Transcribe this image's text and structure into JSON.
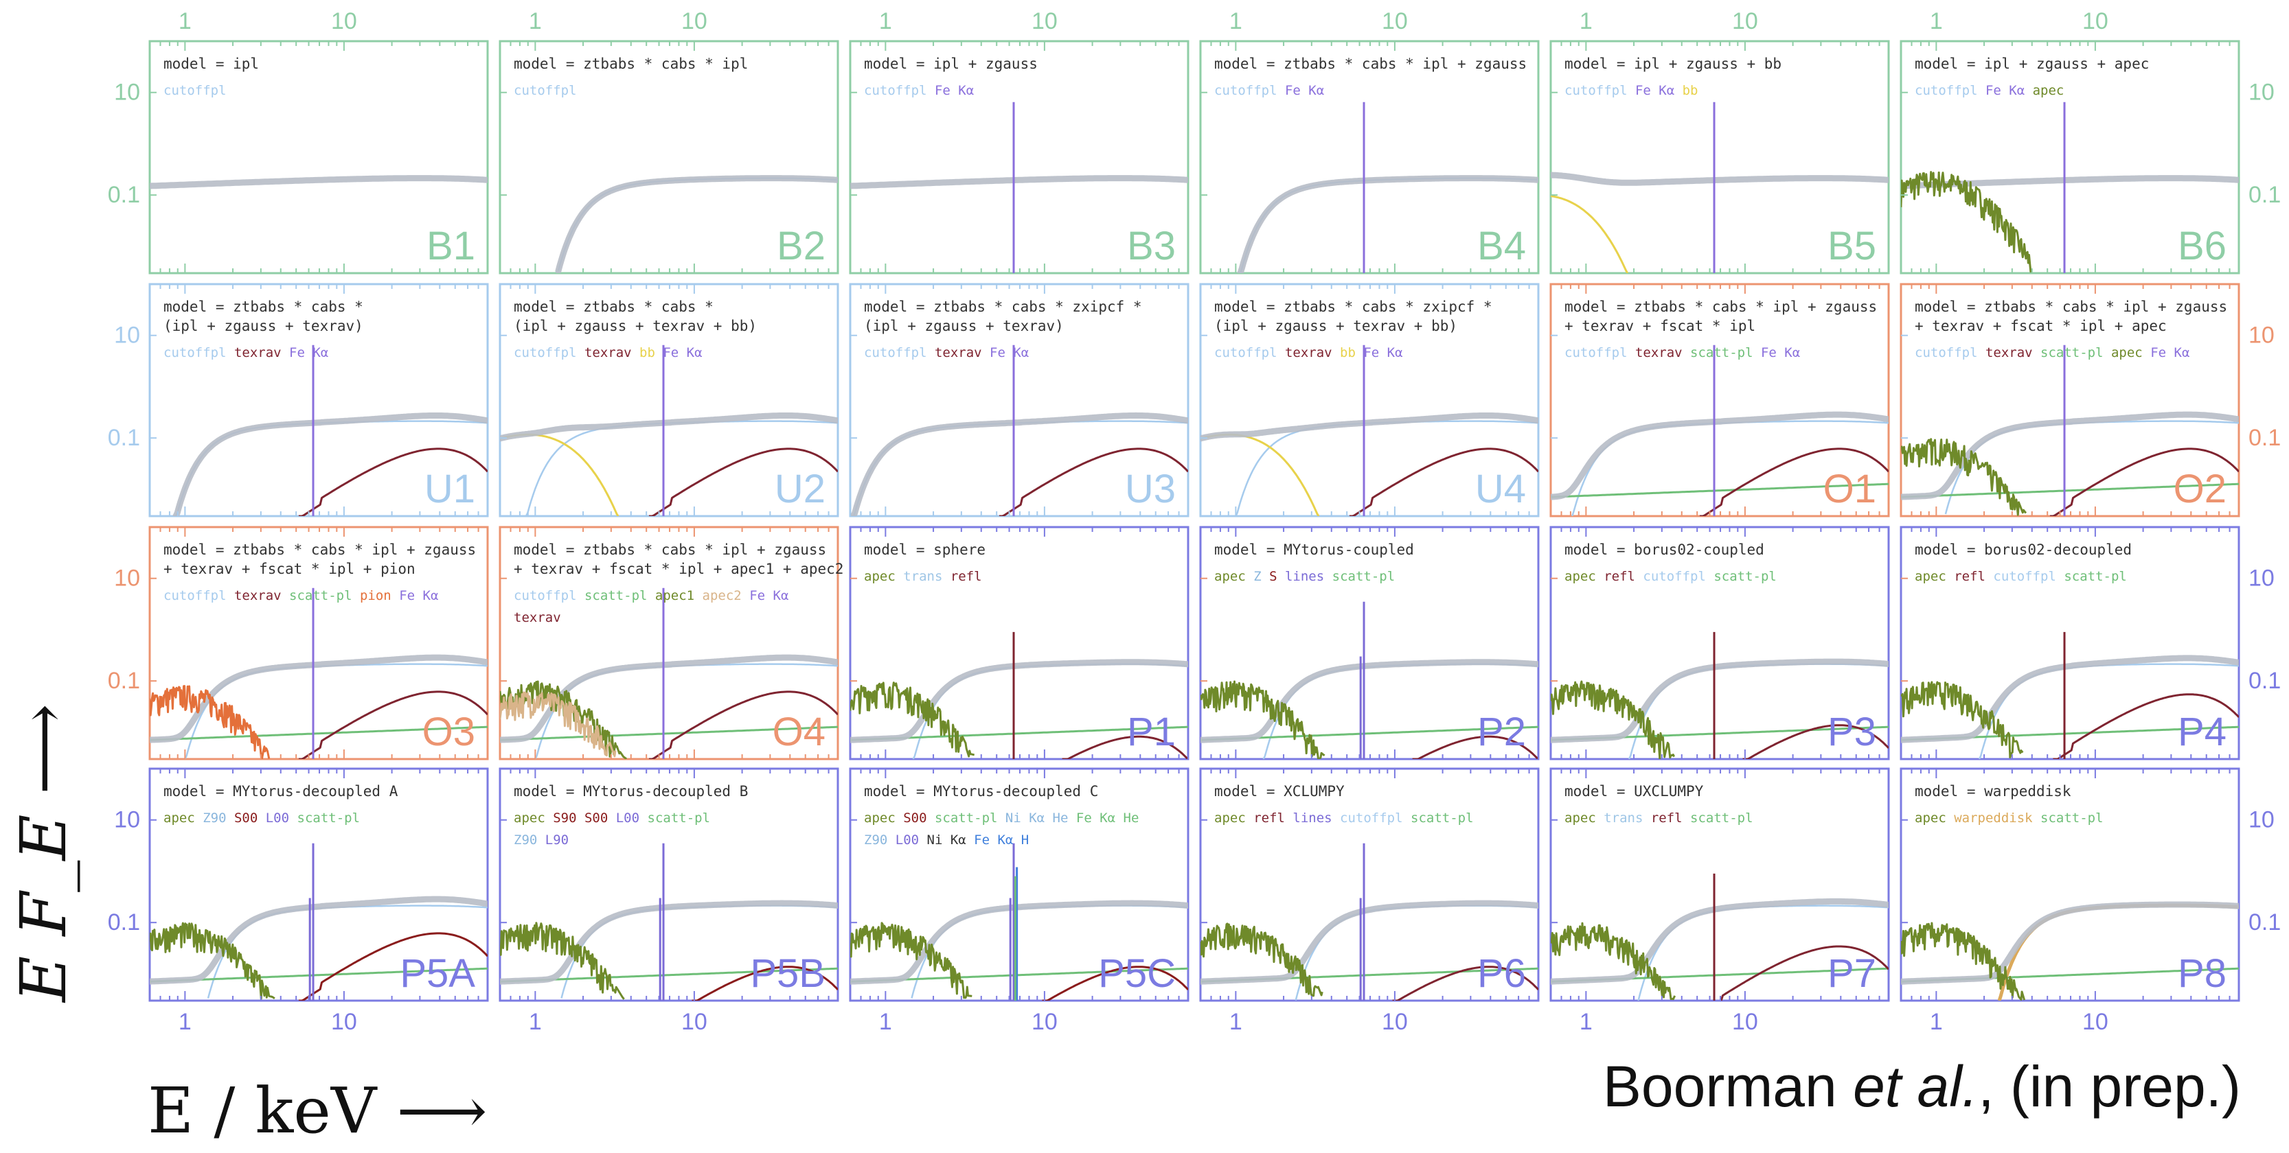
{
  "axes": {
    "xlabel": "E / keV ⟶",
    "ylabel": "E F_E ⟶",
    "x_scale": "log",
    "y_scale": "log",
    "xlim": [
      0.6,
      80
    ],
    "ylim": [
      0.003,
      100
    ],
    "x_ticks": [
      {
        "value": 1,
        "label": "1"
      },
      {
        "value": 10,
        "label": "10"
      }
    ],
    "y_ticks": [
      {
        "value": 10,
        "label": "10"
      },
      {
        "value": 0.1,
        "label": "0.1"
      }
    ]
  },
  "credit": {
    "author": "Boorman",
    "etal": "et al.",
    "rest": ", (in prep.)"
  },
  "colors": {
    "B": "#8fcea6",
    "U": "#a6cbed",
    "O": "#ec9470",
    "P": "#7b7be2",
    "total": "#b7bcc6",
    "cutoffpl": "#a6cbed",
    "texrav": "#7f2430",
    "fekalpha": "#8a6fdc",
    "bb": "#e8d24b",
    "apec": "#6f8a2a",
    "scattpl": "#6fbf78",
    "pion": "#e4703a",
    "apec2": "#d9b48a",
    "trans": "#9fc6e6",
    "refl": "#7f2430",
    "z": "#8ab6dd",
    "s": "#8a1c1c",
    "lines": "#7b6bd6",
    "nika": "#333333",
    "fekah": "#3f7fdc",
    "warpeddisk": "#dba95a"
  },
  "chart_data": {
    "type": "line",
    "title": "",
    "xlabel": "E / keV",
    "ylabel": "E F_E",
    "xlim": [
      0.6,
      80
    ],
    "ylim": [
      0.003,
      100
    ],
    "grid": false,
    "panels": [
      {
        "id": "B1",
        "group": "B",
        "model": [
          "model = ipl"
        ],
        "legend": [
          [
            "cutoffpl",
            "cutoffpl"
          ]
        ]
      },
      {
        "id": "B2",
        "group": "B",
        "model": [
          "model = ztbabs * cabs * ipl"
        ],
        "legend": [
          [
            "cutoffpl",
            "cutoffpl"
          ]
        ]
      },
      {
        "id": "B3",
        "group": "B",
        "model": [
          "model = ipl + zgauss"
        ],
        "legend": [
          [
            "cutoffpl",
            "cutoffpl"
          ],
          [
            "fekalpha",
            "Fe Kα"
          ]
        ]
      },
      {
        "id": "B4",
        "group": "B",
        "model": [
          "model = ztbabs * cabs * ipl + zgauss"
        ],
        "legend": [
          [
            "cutoffpl",
            "cutoffpl"
          ],
          [
            "fekalpha",
            "Fe Kα"
          ]
        ]
      },
      {
        "id": "B5",
        "group": "B",
        "model": [
          "model = ipl + zgauss + bb"
        ],
        "legend": [
          [
            "cutoffpl",
            "cutoffpl"
          ],
          [
            "fekalpha",
            "Fe Kα"
          ],
          [
            "bb",
            "bb"
          ]
        ]
      },
      {
        "id": "B6",
        "group": "B",
        "model": [
          "model = ipl + zgauss + apec"
        ],
        "legend": [
          [
            "cutoffpl",
            "cutoffpl"
          ],
          [
            "fekalpha",
            "Fe Kα"
          ],
          [
            "apec",
            "apec"
          ]
        ]
      },
      {
        "id": "U1",
        "group": "U",
        "model": [
          "model = ztbabs * cabs *",
          "(ipl + zgauss + texrav)"
        ],
        "legend": [
          [
            "cutoffpl",
            "cutoffpl"
          ],
          [
            "texrav",
            "texrav"
          ],
          [
            "fekalpha",
            "Fe Kα"
          ]
        ]
      },
      {
        "id": "U2",
        "group": "U",
        "model": [
          "model = ztbabs * cabs *",
          "(ipl + zgauss + texrav + bb)"
        ],
        "legend": [
          [
            "cutoffpl",
            "cutoffpl"
          ],
          [
            "texrav",
            "texrav"
          ],
          [
            "bb",
            "bb"
          ],
          [
            "fekalpha",
            "Fe Kα"
          ]
        ]
      },
      {
        "id": "U3",
        "group": "U",
        "model": [
          "model = ztbabs * cabs * zxipcf *",
          "(ipl + zgauss + texrav)"
        ],
        "legend": [
          [
            "cutoffpl",
            "cutoffpl"
          ],
          [
            "texrav",
            "texrav"
          ],
          [
            "fekalpha",
            "Fe Kα"
          ]
        ]
      },
      {
        "id": "U4",
        "group": "U",
        "model": [
          "model = ztbabs * cabs * zxipcf *",
          "(ipl + zgauss + texrav + bb)"
        ],
        "legend": [
          [
            "cutoffpl",
            "cutoffpl"
          ],
          [
            "texrav",
            "texrav"
          ],
          [
            "bb",
            "bb"
          ],
          [
            "fekalpha",
            "Fe Kα"
          ]
        ]
      },
      {
        "id": "O1",
        "group": "O",
        "model": [
          "model = ztbabs * cabs * ipl + zgauss",
          "+ texrav + fscat * ipl"
        ],
        "legend": [
          [
            "cutoffpl",
            "cutoffpl"
          ],
          [
            "texrav",
            "texrav"
          ],
          [
            "scattpl",
            "scatt-pl"
          ],
          [
            "fekalpha",
            "Fe Kα"
          ]
        ]
      },
      {
        "id": "O2",
        "group": "O",
        "model": [
          "model = ztbabs * cabs * ipl + zgauss",
          "+ texrav + fscat * ipl + apec"
        ],
        "legend": [
          [
            "cutoffpl",
            "cutoffpl"
          ],
          [
            "texrav",
            "texrav"
          ],
          [
            "scattpl",
            "scatt-pl"
          ],
          [
            "apec",
            "apec"
          ],
          [
            "fekalpha",
            "Fe Kα"
          ]
        ]
      },
      {
        "id": "O3",
        "group": "O",
        "model": [
          "model = ztbabs * cabs * ipl + zgauss",
          "+ texrav + fscat * ipl + pion"
        ],
        "legend": [
          [
            "cutoffpl",
            "cutoffpl"
          ],
          [
            "texrav",
            "texrav"
          ],
          [
            "scattpl",
            "scatt-pl"
          ],
          [
            "pion",
            "pion"
          ],
          [
            "fekalpha",
            "Fe Kα"
          ]
        ]
      },
      {
        "id": "O4",
        "group": "O",
        "model": [
          "model = ztbabs * cabs * ipl + zgauss",
          "+ texrav + fscat * ipl + apec1 + apec2"
        ],
        "legend": [
          [
            "cutoffpl",
            "cutoffpl"
          ],
          [
            "scattpl",
            "scatt-pl"
          ],
          [
            "apec",
            "apec1"
          ],
          [
            "apec2",
            "apec2"
          ],
          [
            "fekalpha",
            "Fe Kα"
          ]
        ],
        "legend2": [
          [
            "texrav",
            "texrav"
          ]
        ]
      },
      {
        "id": "P1",
        "group": "P",
        "model": [
          "model = sphere"
        ],
        "legend": [
          [
            "apec",
            "apec"
          ],
          [
            "trans",
            "trans"
          ],
          [
            "refl",
            "refl"
          ]
        ]
      },
      {
        "id": "P2",
        "group": "P",
        "model": [
          "model = MYtorus-coupled"
        ],
        "legend": [
          [
            "apec",
            "apec"
          ],
          [
            "z",
            "Z"
          ],
          [
            "s",
            "S"
          ],
          [
            "lines",
            "lines"
          ],
          [
            "scattpl",
            "scatt-pl"
          ]
        ]
      },
      {
        "id": "P3",
        "group": "P",
        "model": [
          "model = borus02-coupled"
        ],
        "legend": [
          [
            "apec",
            "apec"
          ],
          [
            "refl",
            "refl"
          ],
          [
            "cutoffpl",
            "cutoffpl"
          ],
          [
            "scattpl",
            "scatt-pl"
          ]
        ]
      },
      {
        "id": "P4",
        "group": "P",
        "model": [
          "model = borus02-decoupled"
        ],
        "legend": [
          [
            "apec",
            "apec"
          ],
          [
            "refl",
            "refl"
          ],
          [
            "cutoffpl",
            "cutoffpl"
          ],
          [
            "scattpl",
            "scatt-pl"
          ]
        ]
      },
      {
        "id": "P5A",
        "group": "P",
        "model": [
          "model = MYtorus-decoupled A"
        ],
        "legend": [
          [
            "apec",
            "apec"
          ],
          [
            "z",
            "Z90"
          ],
          [
            "s",
            "S00"
          ],
          [
            "lines",
            "L00"
          ],
          [
            "scattpl",
            "scatt-pl"
          ]
        ]
      },
      {
        "id": "P5B",
        "group": "P",
        "model": [
          "model = MYtorus-decoupled B"
        ],
        "legend": [
          [
            "apec",
            "apec"
          ],
          [
            "s",
            "S90"
          ],
          [
            "s",
            "S00"
          ],
          [
            "lines",
            "L00"
          ],
          [
            "scattpl",
            "scatt-pl"
          ]
        ],
        "legend2": [
          [
            "z",
            "Z90"
          ],
          [
            "lines",
            "L90"
          ]
        ]
      },
      {
        "id": "P5C",
        "group": "P",
        "model": [
          "model = MYtorus-decoupled C"
        ],
        "legend": [
          [
            "apec",
            "apec"
          ],
          [
            "s",
            "S00"
          ],
          [
            "scattpl",
            "scatt-pl"
          ],
          [
            "z",
            "Ni Kα He"
          ],
          [
            "scattpl",
            "Fe Kα He"
          ]
        ],
        "legend2": [
          [
            "z",
            "Z90"
          ],
          [
            "lines",
            "L00"
          ],
          [
            "nika",
            "Ni Kα"
          ],
          [
            "fekah",
            "Fe Kα H"
          ]
        ]
      },
      {
        "id": "P6",
        "group": "P",
        "model": [
          "model = XCLUMPY"
        ],
        "legend": [
          [
            "apec",
            "apec"
          ],
          [
            "refl",
            "refl"
          ],
          [
            "lines",
            "lines"
          ],
          [
            "cutoffpl",
            "cutoffpl"
          ],
          [
            "scattpl",
            "scatt-pl"
          ]
        ]
      },
      {
        "id": "P7",
        "group": "P",
        "model": [
          "model = UXCLUMPY"
        ],
        "legend": [
          [
            "apec",
            "apec"
          ],
          [
            "trans",
            "trans"
          ],
          [
            "refl",
            "refl"
          ],
          [
            "scattpl",
            "scatt-pl"
          ]
        ]
      },
      {
        "id": "P8",
        "group": "P",
        "model": [
          "model = warpeddisk"
        ],
        "legend": [
          [
            "apec",
            "apec"
          ],
          [
            "warpeddisk",
            "warpeddisk"
          ],
          [
            "scattpl",
            "scatt-pl"
          ]
        ]
      }
    ]
  }
}
